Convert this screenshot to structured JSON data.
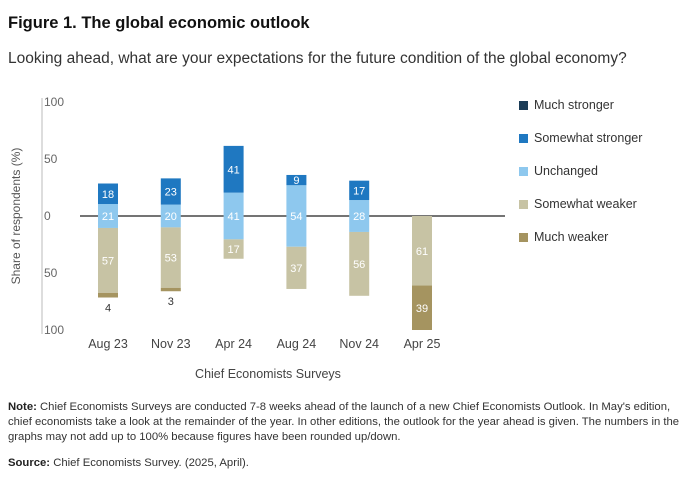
{
  "header": {
    "title": "Figure 1. The global economic outlook",
    "subtitle": "Looking ahead, what are your expectations for the future condition of the global economy?"
  },
  "footer": {
    "note_label": "Note:",
    "note_text": "Chief Economists Surveys are conducted 7-8 weeks ahead of the launch of a new Chief Economists Outlook. In May's edition, chief economists take a look at the remainder of the year. In other editions, the outlook for the year ahead is given. The numbers in the graphs may not add up to 100% because figures have been rounded up/down.",
    "source_label": "Source:",
    "source_text": "Chief Economists Survey. (2025, April)."
  },
  "chart_data": {
    "type": "bar",
    "subtype": "diverging-stacked",
    "xlabel": "Chief Economists Surveys",
    "ylabel": "Share of respondents (%)",
    "ylim": [
      -100,
      100
    ],
    "y_ticks": [
      {
        "value": 100,
        "label": "100"
      },
      {
        "value": 50,
        "label": "50"
      },
      {
        "value": 0,
        "label": "0"
      },
      {
        "value": -50,
        "label": "50"
      },
      {
        "value": -100,
        "label": "100"
      }
    ],
    "categories": [
      "Aug 23",
      "Nov 23",
      "Apr 24",
      "Aug 24",
      "Nov 24",
      "Apr 25"
    ],
    "series": [
      {
        "name": "Much stronger",
        "color": "#1b3c57",
        "direction": "positive",
        "values": [
          0,
          0,
          0,
          0,
          0,
          0
        ],
        "labels": [
          "",
          "",
          "",
          "",
          "",
          ""
        ]
      },
      {
        "name": "Somewhat stronger",
        "color": "#1f78c1",
        "direction": "positive",
        "values": [
          18,
          23,
          41,
          9,
          17,
          0
        ],
        "labels": [
          "18",
          "23",
          "41",
          "9",
          "17",
          ""
        ]
      },
      {
        "name": "Unchanged",
        "color": "#8ec8ee",
        "direction": "center",
        "values": [
          21,
          20,
          41,
          54,
          28,
          0
        ],
        "labels": [
          "21",
          "20",
          "41",
          "54",
          "28",
          ""
        ]
      },
      {
        "name": "Somewhat weaker",
        "color": "#c7c3a4",
        "direction": "negative",
        "values": [
          57,
          53,
          17,
          37,
          56,
          61
        ],
        "labels": [
          "57",
          "53",
          "17",
          "37",
          "56",
          "61"
        ]
      },
      {
        "name": "Much weaker",
        "color": "#a59460",
        "direction": "negative",
        "values": [
          4,
          3,
          0,
          0,
          0,
          39
        ],
        "labels": [
          "4",
          "3",
          "",
          "",
          "",
          "39"
        ]
      }
    ],
    "legend_position": "right",
    "zero_line": true,
    "grid": false
  }
}
